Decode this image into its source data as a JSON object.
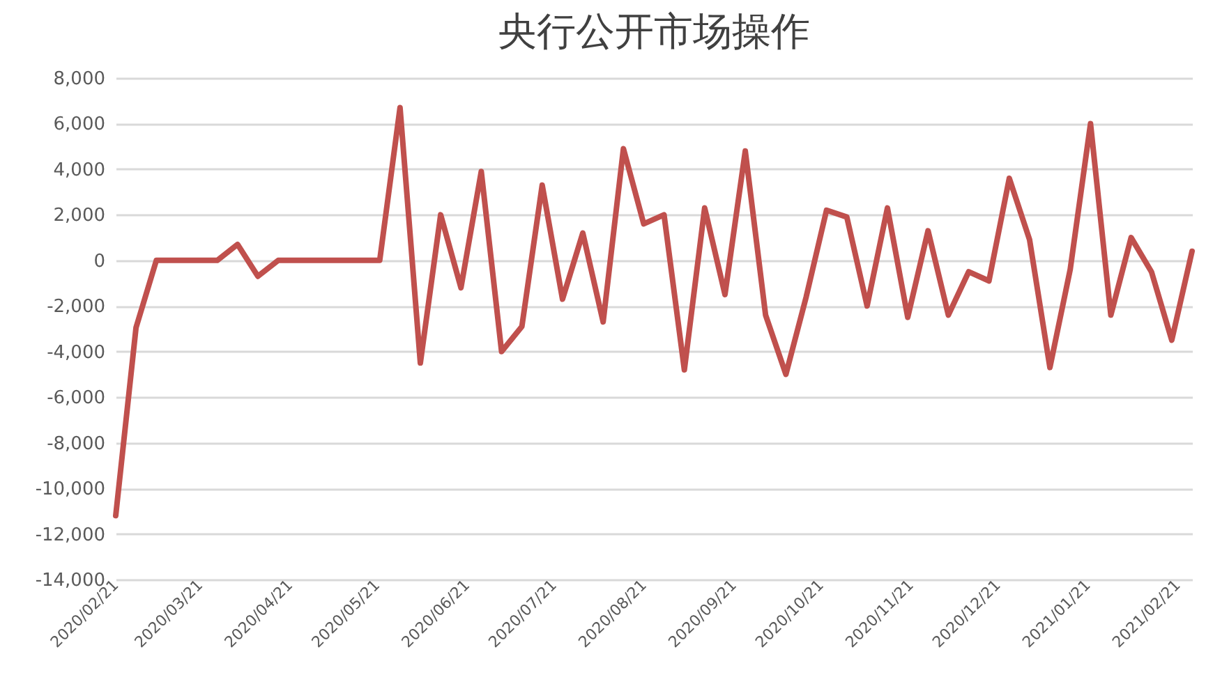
{
  "chart_data": {
    "type": "line",
    "title": "央行公开市场操作",
    "x": [
      "2020-02-21",
      "2020-02-28",
      "2020-03-06",
      "2020-03-13",
      "2020-03-20",
      "2020-03-27",
      "2020-04-03",
      "2020-04-10",
      "2020-04-17",
      "2020-04-24",
      "2020-05-01",
      "2020-05-08",
      "2020-05-15",
      "2020-05-22",
      "2020-05-29",
      "2020-06-05",
      "2020-06-12",
      "2020-06-19",
      "2020-06-26",
      "2020-07-03",
      "2020-07-10",
      "2020-07-17",
      "2020-07-24",
      "2020-07-31",
      "2020-08-07",
      "2020-08-14",
      "2020-08-21",
      "2020-08-28",
      "2020-09-04",
      "2020-09-11",
      "2020-09-18",
      "2020-09-25",
      "2020-10-02",
      "2020-10-09",
      "2020-10-16",
      "2020-10-23",
      "2020-10-30",
      "2020-11-06",
      "2020-11-13",
      "2020-11-20",
      "2020-11-27",
      "2020-12-04",
      "2020-12-11",
      "2020-12-18",
      "2020-12-25",
      "2021-01-01",
      "2021-01-08",
      "2021-01-15",
      "2021-01-22",
      "2021-01-29",
      "2021-02-05",
      "2021-02-12",
      "2021-02-19",
      "2021-02-26"
    ],
    "series": [
      {
        "color": "#c0504d",
        "values": [
          -11200,
          -2950,
          0,
          0,
          0,
          0,
          700,
          -700,
          0,
          0,
          0,
          0,
          0,
          0,
          6700,
          -4500,
          2000,
          -1200,
          3900,
          -4000,
          -2900,
          3300,
          -1700,
          1200,
          -2700,
          4900,
          1600,
          2000,
          -4800,
          2300,
          -1500,
          4800,
          -2400,
          -5000,
          -1600,
          2200,
          1900,
          -2000,
          2300,
          -2500,
          1300,
          -2400,
          -500,
          -900,
          3600,
          900,
          -4700,
          -400,
          6000,
          -2400,
          1000,
          -500,
          -3500,
          400
        ]
      }
    ],
    "xlim": [
      "2020-02-21",
      "2021-02-26"
    ],
    "xticks": [
      {
        "value": "2020-02-21",
        "label": "2020/02/21"
      },
      {
        "value": "2020-03-21",
        "label": "2020/03/21"
      },
      {
        "value": "2020-04-21",
        "label": "2020/04/21"
      },
      {
        "value": "2020-05-21",
        "label": "2020/05/21"
      },
      {
        "value": "2020-06-21",
        "label": "2020/06/21"
      },
      {
        "value": "2020-07-21",
        "label": "2020/07/21"
      },
      {
        "value": "2020-08-21",
        "label": "2020/08/21"
      },
      {
        "value": "2020-09-21",
        "label": "2020/09/21"
      },
      {
        "value": "2020-10-21",
        "label": "2020/10/21"
      },
      {
        "value": "2020-11-21",
        "label": "2020/11/21"
      },
      {
        "value": "2020-12-21",
        "label": "2020/12/21"
      },
      {
        "value": "2021-01-21",
        "label": "2021/01/21"
      },
      {
        "value": "2021-02-21",
        "label": "2021/02/21"
      }
    ],
    "ylim": [
      -14000,
      8000
    ],
    "yticks": [
      {
        "value": -14000,
        "label": "-14,000"
      },
      {
        "value": -12000,
        "label": "-12,000"
      },
      {
        "value": -10000,
        "label": "-10,000"
      },
      {
        "value": -8000,
        "label": "-8,000"
      },
      {
        "value": -6000,
        "label": "-6,000"
      },
      {
        "value": -4000,
        "label": "-4,000"
      },
      {
        "value": -2000,
        "label": "-2,000"
      },
      {
        "value": 0,
        "label": "0"
      },
      {
        "value": 2000,
        "label": "2,000"
      },
      {
        "value": 4000,
        "label": "4,000"
      },
      {
        "value": 6000,
        "label": "6,000"
      },
      {
        "value": 8000,
        "label": "8,000"
      }
    ],
    "grid": "y",
    "marker": "none",
    "line_style": "solid"
  }
}
